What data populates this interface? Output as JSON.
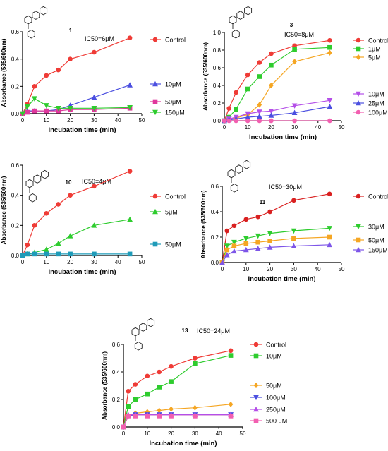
{
  "colors": {
    "red": "#ef3b36",
    "blue": "#4b4fe0",
    "magenta": "#e0389c",
    "green": "#2ecc2e",
    "violet": "#b44fe8",
    "orange": "#f5a623",
    "teal": "#1f9bb8",
    "pink": "#f25fb0",
    "purple": "#7d55e8"
  },
  "chart_data": [
    {
      "type": "line",
      "compound_label": "1",
      "ic50": "IC50=6μM",
      "xlabel": "Incubation time (min)",
      "ylabel": "Absorbance (535/600nm)",
      "xlim": [
        0,
        50
      ],
      "ylim": [
        0,
        0.6
      ],
      "x_ticks": [
        "0",
        "10",
        "20",
        "30",
        "40",
        "50"
      ],
      "y_ticks": [
        "0.0",
        "0.2",
        "0.4",
        "0.6"
      ],
      "x": [
        0,
        2,
        5,
        10,
        15,
        20,
        30,
        45
      ],
      "series": [
        {
          "name": "Control",
          "color": "#ef3b36",
          "marker": "circle",
          "values": [
            0,
            0.07,
            0.2,
            0.28,
            0.32,
            0.4,
            0.45,
            0.555
          ]
        },
        {
          "name": "10μM",
          "color": "#4b4fe0",
          "marker": "triangle-up",
          "values": [
            0,
            0.02,
            0.02,
            0.02,
            0.03,
            0.06,
            0.12,
            0.21
          ]
        },
        {
          "name": "50μM",
          "color": "#e0389c",
          "marker": "square",
          "values": [
            0,
            0.01,
            0.02,
            0.02,
            0.02,
            0.03,
            0.03,
            0.04
          ]
        },
        {
          "name": "150μM",
          "color": "#2ecc2e",
          "marker": "triangle-down",
          "values": [
            0,
            0.05,
            0.11,
            0.06,
            0.04,
            0.04,
            0.04,
            0.045
          ]
        }
      ]
    },
    {
      "type": "line",
      "compound_label": "3",
      "ic50": "IC50=8μM",
      "xlabel": "Incubation time (min)",
      "ylabel": "Absorbance (535/600nm)",
      "xlim": [
        0,
        50
      ],
      "ylim": [
        0,
        1.0
      ],
      "x_ticks": [
        "0",
        "10",
        "20",
        "30",
        "40",
        "50"
      ],
      "y_ticks": [
        "0.0",
        "0.2",
        "0.4",
        "0.6",
        "0.8",
        "1.0"
      ],
      "x": [
        0,
        2,
        5,
        10,
        15,
        20,
        30,
        45
      ],
      "series": [
        {
          "name": "Control",
          "color": "#ef3b36",
          "marker": "circle",
          "values": [
            0,
            0.14,
            0.32,
            0.52,
            0.66,
            0.76,
            0.85,
            0.91
          ]
        },
        {
          "name": "1μM",
          "color": "#2ecc2e",
          "marker": "square",
          "values": [
            0,
            0.04,
            0.13,
            0.36,
            0.5,
            0.63,
            0.81,
            0.83
          ]
        },
        {
          "name": "5μM",
          "color": "#f5a623",
          "marker": "diamond",
          "values": [
            0,
            0.02,
            0.03,
            0.07,
            0.18,
            0.4,
            0.67,
            0.77
          ]
        },
        {
          "name": "10μM",
          "color": "#b44fe8",
          "marker": "triangle-down",
          "values": [
            0,
            0.02,
            0.04,
            0.08,
            0.1,
            0.11,
            0.17,
            0.23
          ]
        },
        {
          "name": "25μM",
          "color": "#4b4fe0",
          "marker": "triangle-up",
          "values": [
            0,
            0.01,
            0.02,
            0.04,
            0.05,
            0.06,
            0.09,
            0.16
          ]
        },
        {
          "name": "100μM",
          "color": "#f25fb0",
          "marker": "circle",
          "values": [
            0,
            0.0,
            0.0,
            0.0,
            0.0,
            0.0,
            0.0,
            0.0
          ]
        }
      ]
    },
    {
      "type": "line",
      "compound_label": "10",
      "ic50": "IC50=4μM",
      "xlabel": "Incubation time (min)",
      "ylabel": "Absorbance (535/600nm)",
      "xlim": [
        0,
        50
      ],
      "ylim": [
        0,
        0.6
      ],
      "x_ticks": [
        "0",
        "10",
        "20",
        "30",
        "40",
        "50"
      ],
      "y_ticks": [
        "0.0",
        "0.2",
        "0.4",
        "0.6"
      ],
      "x": [
        0,
        2,
        5,
        10,
        15,
        20,
        30,
        45
      ],
      "series": [
        {
          "name": "Control",
          "color": "#ef3b36",
          "marker": "circle",
          "values": [
            0,
            0.07,
            0.2,
            0.28,
            0.34,
            0.4,
            0.46,
            0.56
          ]
        },
        {
          "name": "5μM",
          "color": "#2ecc2e",
          "marker": "triangle-up",
          "values": [
            0,
            0.01,
            0.02,
            0.04,
            0.08,
            0.13,
            0.2,
            0.24
          ]
        },
        {
          "name": "50μM",
          "color": "#1f9bb8",
          "marker": "square",
          "values": [
            0,
            0.01,
            0.01,
            0.01,
            0.01,
            0.01,
            0.01,
            0.01
          ]
        }
      ]
    },
    {
      "type": "line",
      "compound_label": "11",
      "ic50": "IC50=30μM",
      "xlabel": "Incubation time (min)",
      "ylabel": "Absorbance (535/600nm)",
      "xlim": [
        0,
        50
      ],
      "ylim": [
        0,
        0.6
      ],
      "x_ticks": [
        "0",
        "10",
        "20",
        "30",
        "40",
        "50"
      ],
      "y_ticks": [
        "0.0",
        "0.2",
        "0.4",
        "0.6"
      ],
      "x": [
        0,
        2,
        5,
        10,
        15,
        20,
        30,
        45
      ],
      "series": [
        {
          "name": "Control",
          "color": "#d92020",
          "marker": "circle",
          "values": [
            0,
            0.25,
            0.29,
            0.34,
            0.36,
            0.4,
            0.49,
            0.54
          ]
        },
        {
          "name": "30μM",
          "color": "#2ecc2e",
          "marker": "triangle-down",
          "values": [
            0,
            0.13,
            0.16,
            0.19,
            0.21,
            0.23,
            0.25,
            0.27
          ]
        },
        {
          "name": "50μM",
          "color": "#f5a623",
          "marker": "square",
          "values": [
            0,
            0.1,
            0.13,
            0.15,
            0.16,
            0.17,
            0.19,
            0.2
          ]
        },
        {
          "name": "150μM",
          "color": "#7d55e8",
          "marker": "triangle-up",
          "values": [
            0,
            0.06,
            0.09,
            0.1,
            0.11,
            0.12,
            0.13,
            0.14
          ]
        }
      ]
    },
    {
      "type": "line",
      "compound_label": "13",
      "ic50": "IC50=24μM",
      "xlabel": "Incubation time (min)",
      "ylabel": "Absorbance (535/600nm)",
      "xlim": [
        0,
        50
      ],
      "ylim": [
        0,
        0.6
      ],
      "x_ticks": [
        "0",
        "10",
        "20",
        "30",
        "40",
        "50"
      ],
      "y_ticks": [
        "0.0",
        "0.2",
        "0.4",
        "0.6"
      ],
      "x": [
        0,
        2,
        5,
        10,
        15,
        20,
        30,
        45
      ],
      "series": [
        {
          "name": "Control",
          "color": "#ef3b36",
          "marker": "circle",
          "values": [
            0,
            0.26,
            0.31,
            0.37,
            0.4,
            0.44,
            0.5,
            0.555
          ]
        },
        {
          "name": "10μM",
          "color": "#2ecc2e",
          "marker": "square",
          "values": [
            0,
            0.15,
            0.2,
            0.24,
            0.29,
            0.33,
            0.46,
            0.52
          ]
        },
        {
          "name": "50μM",
          "color": "#f5a623",
          "marker": "diamond",
          "values": [
            0,
            0.08,
            0.1,
            0.11,
            0.12,
            0.13,
            0.14,
            0.165
          ]
        },
        {
          "name": "100μM",
          "color": "#4b4fe0",
          "marker": "triangle-down",
          "values": [
            0,
            0.08,
            0.09,
            0.09,
            0.09,
            0.09,
            0.09,
            0.09
          ]
        },
        {
          "name": "250μM",
          "color": "#b44fe8",
          "marker": "triangle-up",
          "values": [
            0,
            0.09,
            0.09,
            0.09,
            0.09,
            0.09,
            0.09,
            0.09
          ]
        },
        {
          "name": "500 μM",
          "color": "#f25fb0",
          "marker": "square",
          "values": [
            0,
            0.08,
            0.08,
            0.08,
            0.08,
            0.08,
            0.08,
            0.08
          ]
        }
      ]
    }
  ]
}
